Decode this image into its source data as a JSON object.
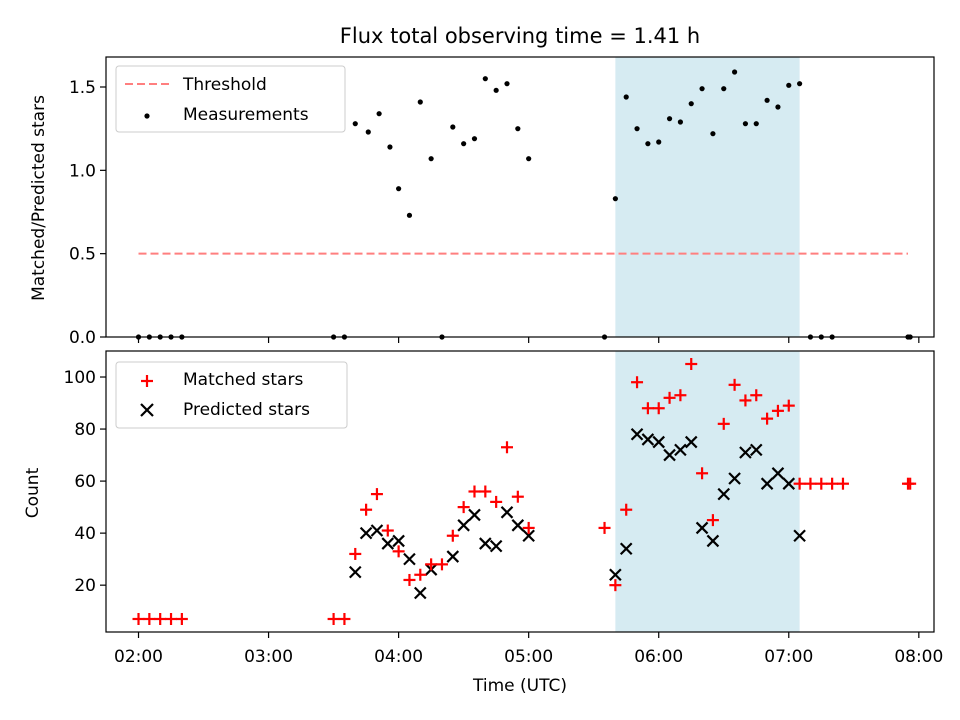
{
  "title": "Flux total observing time = 1.41 h",
  "colors": {
    "threshold": "#ff7f7f",
    "measurement": "#000000",
    "matched": "#ff0000",
    "predicted": "#000000",
    "highlight": "#add8e6"
  },
  "chart_data": [
    {
      "type": "scatter",
      "panel": "top",
      "ylabel": "Matched/Predicted stars",
      "xlim": [
        "01:45",
        "08:07"
      ],
      "ylim": [
        0,
        1.68
      ],
      "yticks": [
        0,
        0.5,
        1.0,
        1.5
      ],
      "ytick_labels": [
        "0.0",
        "0.5",
        "1.0",
        "1.5"
      ],
      "highlight_span": [
        "05:40",
        "07:05"
      ],
      "legend": {
        "location": "upper-left",
        "entries": [
          {
            "label": "Threshold",
            "marker": "dashed-line"
          },
          {
            "label": "Measurements",
            "marker": "dot"
          }
        ]
      },
      "threshold": {
        "name": "Threshold",
        "y": 0.5,
        "x_range": [
          "02:00",
          "07:55"
        ]
      },
      "series": [
        {
          "name": "Measurements",
          "marker": "dot",
          "points": [
            [
              "02:00",
              0
            ],
            [
              "02:05",
              0
            ],
            [
              "02:10",
              0
            ],
            [
              "02:15",
              0
            ],
            [
              "02:20",
              0
            ],
            [
              "03:30",
              0
            ],
            [
              "03:35",
              0
            ],
            [
              "03:40",
              1.28
            ],
            [
              "03:46",
              1.23
            ],
            [
              "03:51",
              1.34
            ],
            [
              "03:56",
              1.14
            ],
            [
              "04:00",
              0.89
            ],
            [
              "04:05",
              0.73
            ],
            [
              "04:10",
              1.41
            ],
            [
              "04:15",
              1.07
            ],
            [
              "04:20",
              0
            ],
            [
              "04:25",
              1.26
            ],
            [
              "04:30",
              1.16
            ],
            [
              "04:35",
              1.19
            ],
            [
              "04:40",
              1.55
            ],
            [
              "04:45",
              1.48
            ],
            [
              "04:50",
              1.52
            ],
            [
              "04:55",
              1.25
            ],
            [
              "05:00",
              1.07
            ],
            [
              "05:35",
              0
            ],
            [
              "05:40",
              0.83
            ],
            [
              "05:45",
              1.44
            ],
            [
              "05:50",
              1.25
            ],
            [
              "05:55",
              1.16
            ],
            [
              "06:00",
              1.17
            ],
            [
              "06:05",
              1.31
            ],
            [
              "06:10",
              1.29
            ],
            [
              "06:15",
              1.4
            ],
            [
              "06:20",
              1.49
            ],
            [
              "06:25",
              1.22
            ],
            [
              "06:30",
              1.49
            ],
            [
              "06:35",
              1.59
            ],
            [
              "06:40",
              1.28
            ],
            [
              "06:45",
              1.28
            ],
            [
              "06:50",
              1.42
            ],
            [
              "06:55",
              1.38
            ],
            [
              "07:00",
              1.51
            ],
            [
              "07:05",
              1.52
            ],
            [
              "07:10",
              0
            ],
            [
              "07:15",
              0
            ],
            [
              "07:20",
              0
            ],
            [
              "07:55",
              0
            ],
            [
              "07:56",
              0
            ]
          ]
        }
      ]
    },
    {
      "type": "scatter",
      "panel": "bottom",
      "xlabel": "Time (UTC)",
      "ylabel": "Count",
      "xlim": [
        "01:45",
        "08:07"
      ],
      "ylim": [
        2,
        110
      ],
      "yticks": [
        20,
        40,
        60,
        80,
        100
      ],
      "xticks": [
        "02:00",
        "03:00",
        "04:00",
        "05:00",
        "06:00",
        "07:00",
        "08:00"
      ],
      "highlight_span": [
        "05:40",
        "07:05"
      ],
      "legend": {
        "location": "upper-left",
        "entries": [
          {
            "label": "Matched stars",
            "marker": "plus"
          },
          {
            "label": "Predicted stars",
            "marker": "x"
          }
        ]
      },
      "series": [
        {
          "name": "Matched stars",
          "marker": "plus",
          "points": [
            [
              "02:00",
              7
            ],
            [
              "02:05",
              7
            ],
            [
              "02:10",
              7
            ],
            [
              "02:15",
              7
            ],
            [
              "02:20",
              7
            ],
            [
              "03:30",
              7
            ],
            [
              "03:35",
              7
            ],
            [
              "03:40",
              32
            ],
            [
              "03:45",
              49
            ],
            [
              "03:50",
              55
            ],
            [
              "03:55",
              41
            ],
            [
              "04:00",
              33
            ],
            [
              "04:05",
              22
            ],
            [
              "04:10",
              24
            ],
            [
              "04:15",
              28
            ],
            [
              "04:20",
              28
            ],
            [
              "04:25",
              39
            ],
            [
              "04:30",
              50
            ],
            [
              "04:35",
              56
            ],
            [
              "04:40",
              56
            ],
            [
              "04:45",
              52
            ],
            [
              "04:50",
              73
            ],
            [
              "04:55",
              54
            ],
            [
              "05:00",
              42
            ],
            [
              "05:35",
              42
            ],
            [
              "05:40",
              20
            ],
            [
              "05:45",
              49
            ],
            [
              "05:50",
              98
            ],
            [
              "05:55",
              88
            ],
            [
              "06:00",
              88
            ],
            [
              "06:05",
              92
            ],
            [
              "06:10",
              93
            ],
            [
              "06:15",
              105
            ],
            [
              "06:20",
              63
            ],
            [
              "06:25",
              45
            ],
            [
              "06:30",
              82
            ],
            [
              "06:35",
              97
            ],
            [
              "06:40",
              91
            ],
            [
              "06:45",
              93
            ],
            [
              "06:50",
              84
            ],
            [
              "06:55",
              87
            ],
            [
              "07:00",
              89
            ],
            [
              "07:05",
              59
            ],
            [
              "07:10",
              59
            ],
            [
              "07:15",
              59
            ],
            [
              "07:20",
              59
            ],
            [
              "07:25",
              59
            ],
            [
              "07:55",
              59
            ],
            [
              "07:56",
              59
            ]
          ]
        },
        {
          "name": "Predicted stars",
          "marker": "x",
          "points": [
            [
              "03:40",
              25
            ],
            [
              "03:45",
              40
            ],
            [
              "03:50",
              41
            ],
            [
              "03:55",
              36
            ],
            [
              "04:00",
              37
            ],
            [
              "04:05",
              30
            ],
            [
              "04:10",
              17
            ],
            [
              "04:15",
              26
            ],
            [
              "04:25",
              31
            ],
            [
              "04:30",
              43
            ],
            [
              "04:35",
              47
            ],
            [
              "04:40",
              36
            ],
            [
              "04:45",
              35
            ],
            [
              "04:50",
              48
            ],
            [
              "04:55",
              43
            ],
            [
              "05:00",
              39
            ],
            [
              "05:40",
              24
            ],
            [
              "05:45",
              34
            ],
            [
              "05:50",
              78
            ],
            [
              "05:55",
              76
            ],
            [
              "06:00",
              75
            ],
            [
              "06:05",
              70
            ],
            [
              "06:10",
              72
            ],
            [
              "06:15",
              75
            ],
            [
              "06:20",
              42
            ],
            [
              "06:25",
              37
            ],
            [
              "06:30",
              55
            ],
            [
              "06:35",
              61
            ],
            [
              "06:40",
              71
            ],
            [
              "06:45",
              72
            ],
            [
              "06:50",
              59
            ],
            [
              "06:55",
              63
            ],
            [
              "07:00",
              59
            ],
            [
              "07:05",
              39
            ]
          ]
        }
      ]
    }
  ]
}
